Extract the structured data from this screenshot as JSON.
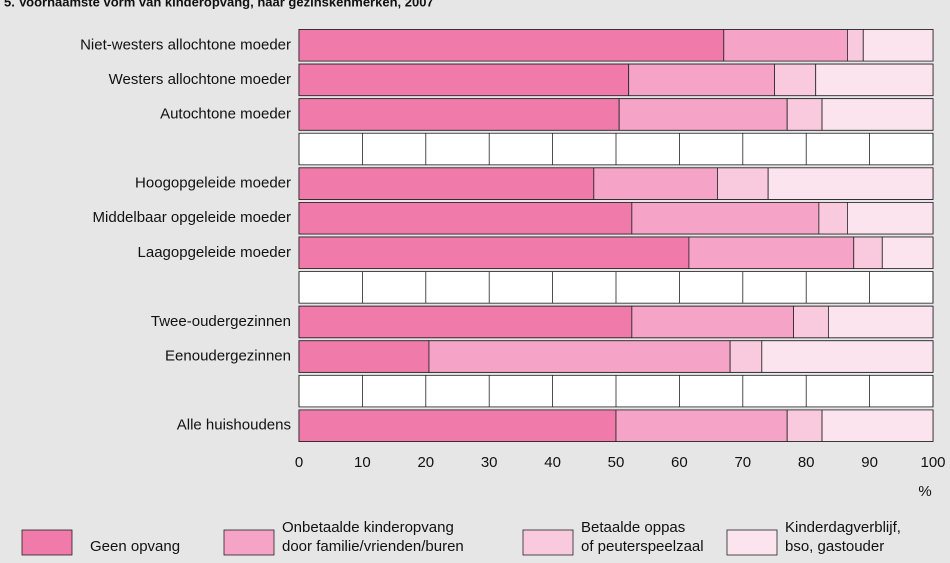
{
  "chart_data": {
    "type": "stacked-bar-horizontal",
    "title": "5. Voornaamste vorm van kinderopvang, naar gezinskenmerken, 2007",
    "x_label": "%",
    "categories": [
      "Niet-westers allochtone moeder",
      "Westers allochtone moeder",
      "Autochtone moeder",
      null,
      "Hoogopgeleide moeder",
      "Middelbaar opgeleide moeder",
      "Laagopgeleide moeder",
      null,
      "Twee-oudergezinnen",
      "Eenoudergezinnen",
      null,
      "Alle huishoudens"
    ],
    "series": [
      {
        "name": "Geen opvang",
        "color": "#f07aaa",
        "values": [
          67,
          52,
          50.5,
          null,
          46.5,
          52.5,
          61.5,
          null,
          52.5,
          20.5,
          null,
          50
        ]
      },
      {
        "name": "Onbetaalde kinderopvang\ndoor familie/vrienden/buren",
        "color": "#f5a3c6",
        "values": [
          19.5,
          23,
          26.5,
          null,
          19.5,
          29.5,
          26,
          null,
          25.5,
          47.5,
          null,
          27
        ]
      },
      {
        "name": "Betaalde oppas\nof peuterspeelzaal",
        "color": "#f9cadd",
        "values": [
          2.5,
          6.5,
          5.5,
          null,
          8,
          4.5,
          4.5,
          null,
          5.5,
          5,
          null,
          5.5
        ]
      },
      {
        "name": "Kinderdagverblijf,\nbso, gastouder",
        "color": "#fce4ee",
        "values": [
          11,
          18.5,
          17.5,
          null,
          26,
          13.5,
          8,
          null,
          16.5,
          27,
          null,
          17.5
        ]
      }
    ],
    "xlim": [
      0,
      100
    ],
    "xticks": [
      0,
      10,
      20,
      30,
      40,
      50,
      60,
      70,
      80,
      90,
      100
    ],
    "grid": true
  }
}
